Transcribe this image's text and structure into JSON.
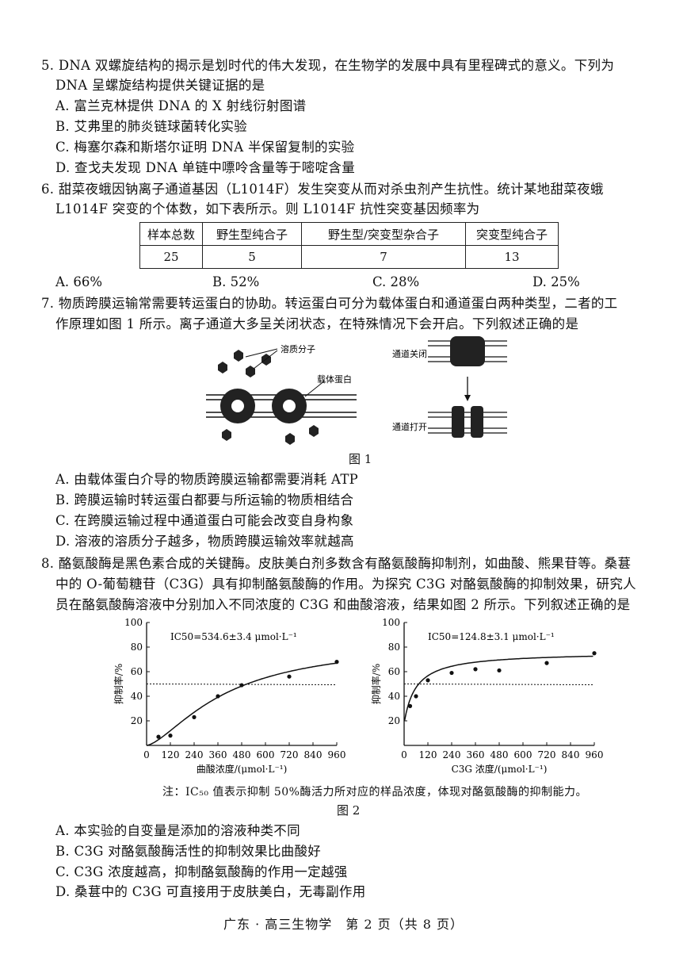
{
  "q5": {
    "stem1": "5. DNA 双螺旋结构的揭示是划时代的伟大发现，在生物学的发展中具有里程碑式的意义。下列为",
    "stem2": "DNA 呈螺旋结构提供关键证据的是",
    "options": [
      "A. 富兰克林提供 DNA 的 X 射线衍射图谱",
      "B. 艾弗里的肺炎链球菌转化实验",
      "C. 梅塞尔森和斯塔尔证明 DNA 半保留复制的实验",
      "D. 查戈夫发现 DNA 单链中嘌呤含量等于嘧啶含量"
    ]
  },
  "q6": {
    "stem1": "6. 甜菜夜蛾因钠离子通道基因（L1014F）发生突变从而对杀虫剂产生抗性。统计某地甜菜夜蛾",
    "stem2": "L1014F 突变的个体数，如下表所示。则 L1014F 抗性突变基因频率为",
    "table": {
      "headers": [
        "样本总数",
        "野生型纯合子",
        "野生型/突变型杂合子",
        "突变型纯合子"
      ],
      "values": [
        "25",
        "5",
        "7",
        "13"
      ]
    },
    "options": [
      "A. 66%",
      "B. 52%",
      "C. 28%",
      "D. 25%"
    ]
  },
  "q7": {
    "stem1": "7. 物质跨膜运输常需要转运蛋白的协助。转运蛋白可分为载体蛋白和通道蛋白两种类型，二者的工",
    "stem2": "作原理如图 1 所示。离子通道大多呈关闭状态，在特殊情况下会开启。下列叙述正确的是",
    "figure": {
      "label_solute": "溶质分子",
      "label_carrier": "载体蛋白",
      "label_closed": "通道关闭",
      "label_open": "通道打开",
      "caption": "图 1"
    },
    "options": [
      "A. 由载体蛋白介导的物质跨膜运输都需要消耗 ATP",
      "B. 跨膜运输时转运蛋白都要与所运输的物质相结合",
      "C. 在跨膜运输过程中通道蛋白可能会改变自身构象",
      "D. 溶液的溶质分子越多，物质跨膜运输效率就越高"
    ]
  },
  "q8": {
    "stem1": "8. 酪氨酸酶是黑色素合成的关键酶。皮肤美白剂多数含有酪氨酸酶抑制剂，如曲酸、熊果苷等。桑葚",
    "stem2": "中的 O-葡萄糖苷（C3G）具有抑制酪氨酸酶的作用。为探究 C3G 对酪氨酸酶的抑制效果，研究人",
    "stem3": "员在酪氨酸酶溶液中分别加入不同浓度的 C3G 和曲酸溶液，结果如图 2 所示。下列叙述正确的是",
    "note": "注：IC₅₀ 值表示抑制 50%酶活力所对应的样品浓度，体现对酪氨酸酶的抑制能力。",
    "caption": "图 2",
    "options": [
      "A. 本实验的自变量是添加的溶液种类不同",
      "B. C3G 对酪氨酸酶活性的抑制效果比曲酸好",
      "C. C3G 浓度越高，抑制酪氨酸酶的作用一定越强",
      "D. 桑葚中的 C3G 可直接用于皮肤美白，无毒副作用"
    ]
  },
  "chart_data": [
    {
      "type": "scatter",
      "annotation": "IC50=534.6±3.4 μmol·L⁻¹",
      "xlabel": "曲酸浓度/(μmol·L⁻¹)",
      "ylabel": "抑制率/%",
      "xlim": [
        0,
        960
      ],
      "ylim": [
        0,
        100
      ],
      "xticks": [
        "0",
        "120",
        "240",
        "360",
        "480",
        "600",
        "720",
        "840",
        "960"
      ],
      "yticks": [
        "20",
        "40",
        "60",
        "80",
        "100"
      ],
      "x": [
        60,
        120,
        240,
        360,
        480,
        720,
        960
      ],
      "y": [
        7,
        8,
        23,
        40,
        49,
        56,
        68
      ],
      "reference_line_y": 50
    },
    {
      "type": "scatter",
      "annotation": "IC50=124.8±3.1 μmol·L⁻¹",
      "xlabel": "C3G 浓度/(μmol·L⁻¹)",
      "ylabel": "抑制率/%",
      "xlim": [
        0,
        960
      ],
      "ylim": [
        0,
        100
      ],
      "xticks": [
        "0",
        "120",
        "240",
        "360",
        "480",
        "600",
        "720",
        "840",
        "960"
      ],
      "yticks": [
        "20",
        "40",
        "60",
        "80",
        "100"
      ],
      "x": [
        30,
        60,
        120,
        240,
        360,
        480,
        720,
        960
      ],
      "y": [
        32,
        40,
        53,
        59,
        62,
        61,
        67,
        75
      ],
      "reference_line_y": 50
    }
  ],
  "footer": "广东 · 高三生物学　第 2 页（共 8 页）"
}
